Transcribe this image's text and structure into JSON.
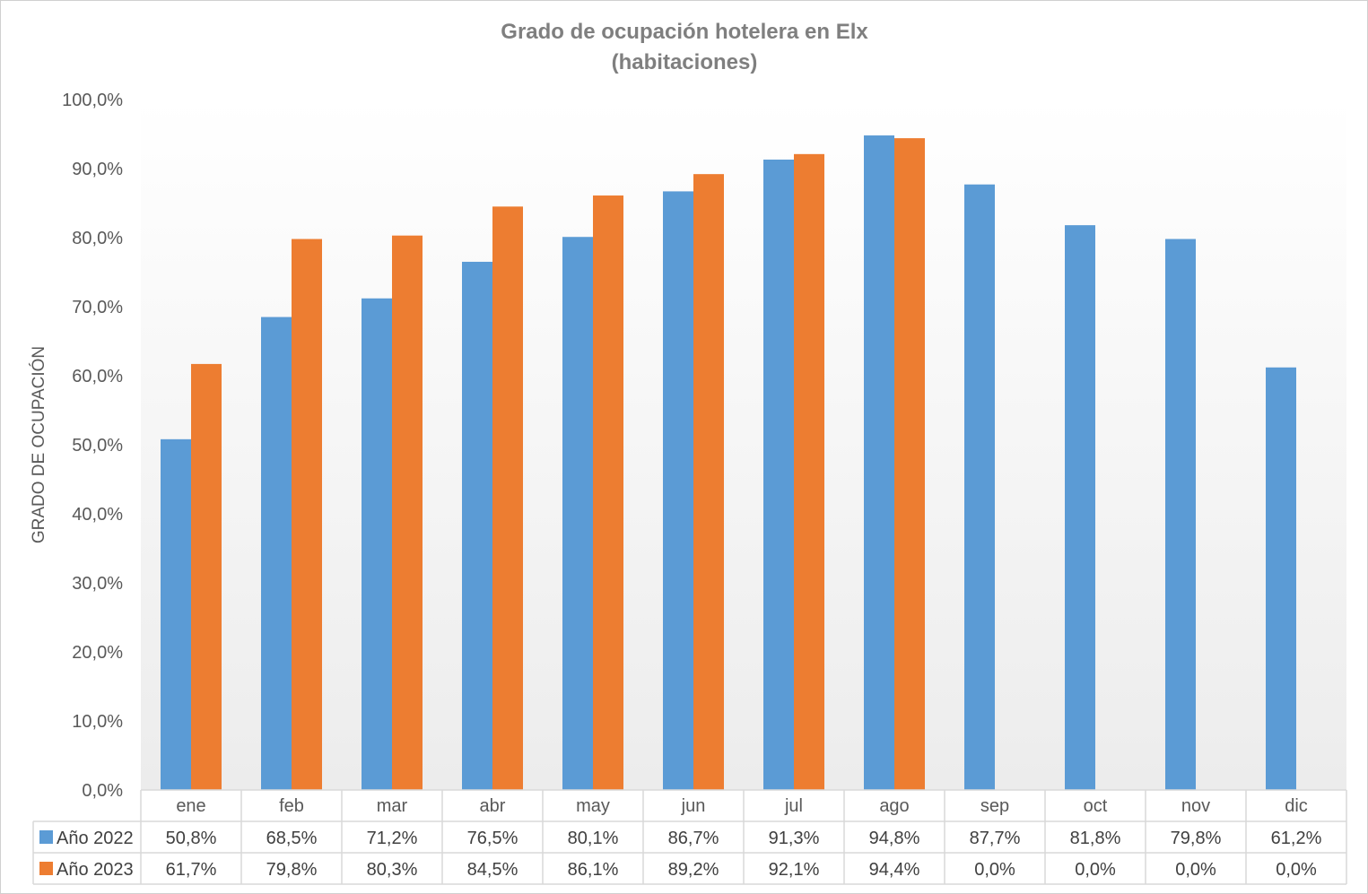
{
  "chart_data": {
    "type": "bar",
    "title": "Grado de ocupación hotelera en Elx",
    "subtitle": "(habitaciones)",
    "ylabel": "GRADO DE OCUPACIÓN",
    "xlabel": "",
    "ylim": [
      0,
      100
    ],
    "y_ticks": [
      "0,0%",
      "10,0%",
      "20,0%",
      "30,0%",
      "40,0%",
      "50,0%",
      "60,0%",
      "70,0%",
      "80,0%",
      "90,0%",
      "100,0%"
    ],
    "categories": [
      "ene",
      "feb",
      "mar",
      "abr",
      "may",
      "jun",
      "jul",
      "ago",
      "sep",
      "oct",
      "nov",
      "dic"
    ],
    "series": [
      {
        "name": "Año 2022",
        "color": "#5b9bd5",
        "values": [
          50.8,
          68.5,
          71.2,
          76.5,
          80.1,
          86.7,
          91.3,
          94.8,
          87.7,
          81.8,
          79.8,
          61.2
        ],
        "labels": [
          "50,8%",
          "68,5%",
          "71,2%",
          "76,5%",
          "80,1%",
          "86,7%",
          "91,3%",
          "94,8%",
          "87,7%",
          "81,8%",
          "79,8%",
          "61,2%"
        ]
      },
      {
        "name": "Año 2023",
        "color": "#ed7d31",
        "values": [
          61.7,
          79.8,
          80.3,
          84.5,
          86.1,
          89.2,
          92.1,
          94.4,
          0.0,
          0.0,
          0.0,
          0.0
        ],
        "labels": [
          "61,7%",
          "79,8%",
          "80,3%",
          "84,5%",
          "86,1%",
          "89,2%",
          "92,1%",
          "94,4%",
          "0,0%",
          "0,0%",
          "0,0%",
          "0,0%"
        ]
      }
    ],
    "legend": "data-table",
    "grid": false
  }
}
